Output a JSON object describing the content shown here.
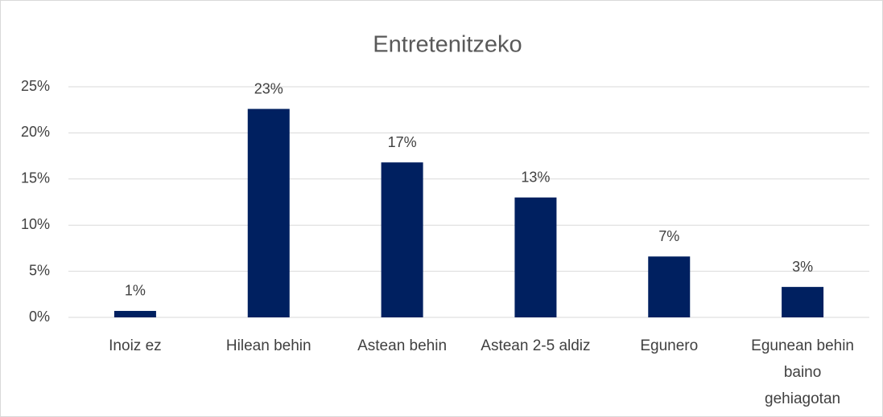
{
  "chart_data": {
    "type": "bar",
    "title": "Entretenitzeko",
    "categories": [
      "Inoiz ez",
      "Hilean behin",
      "Astean behin",
      "Astean 2-5 aldiz",
      "Egunero",
      "Egunean behin baino gehiagotan"
    ],
    "values": [
      0.7,
      22.6,
      16.8,
      13,
      6.6,
      3.3
    ],
    "value_labels": [
      "1%",
      "23%",
      "17%",
      "13%",
      "7%",
      "3%"
    ],
    "color": "#002060",
    "ylim": [
      0,
      25
    ],
    "yticks": [
      {
        "value": 0,
        "label": "0%"
      },
      {
        "value": 5,
        "label": "5%"
      },
      {
        "value": 10,
        "label": "10%"
      },
      {
        "value": 15,
        "label": "15%"
      },
      {
        "value": 20,
        "label": "20%"
      },
      {
        "value": 25,
        "label": "25%"
      }
    ],
    "grid": true
  }
}
